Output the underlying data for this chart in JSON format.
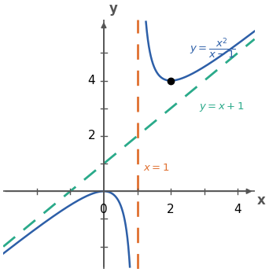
{
  "xlim": [
    -3.0,
    4.5
  ],
  "ylim": [
    -2.8,
    6.2
  ],
  "func_color": "#2d5fa8",
  "asymp_x_color": "#e07030",
  "asymp_y_color": "#2aaa8a",
  "axis_color": "#555555",
  "dot_x": 2,
  "dot_y": 4,
  "figsize": [
    3.42,
    3.46
  ],
  "dpi": 100
}
